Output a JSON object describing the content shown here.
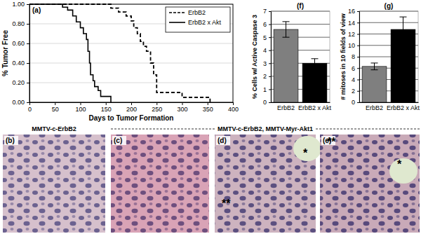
{
  "chart_data": [
    {
      "type": "line",
      "panel_label": "(a)",
      "x_label": "Days to Tumor Formation",
      "y_label": "% Tumor Free",
      "xlim": [
        0,
        400
      ],
      "xticks": [
        0,
        50,
        100,
        150,
        200,
        250,
        300,
        350,
        400
      ],
      "ylim": [
        0,
        1
      ],
      "yticks": [
        {
          "value": 0,
          "label": "0.00"
        },
        {
          "value": 0.2,
          "label": "0.20"
        },
        {
          "value": 0.4,
          "label": "0.40"
        },
        {
          "value": 0.6,
          "label": "0.60"
        },
        {
          "value": 0.8,
          "label": "0.80"
        },
        {
          "value": 1,
          "label": "1.00"
        }
      ],
      "grid": true,
      "legend": "upper right",
      "series": [
        {
          "name": "ErbB2",
          "color": "#000000",
          "line_style": "dashed",
          "x": [
            0,
            160,
            175,
            190,
            200,
            205,
            212,
            218,
            224,
            230,
            238,
            244,
            250,
            300,
            355
          ],
          "values": [
            1,
            0.96,
            0.92,
            0.88,
            0.83,
            0.76,
            0.7,
            0.62,
            0.57,
            0.52,
            0.4,
            0.28,
            0.1,
            0.05,
            0
          ]
        },
        {
          "name": "ErbB2 x Akt",
          "color": "#000000",
          "line_style": "solid",
          "x": [
            0,
            65,
            75,
            85,
            92,
            100,
            106,
            112,
            115,
            118,
            120,
            125,
            128,
            135,
            140,
            160
          ],
          "values": [
            1,
            0.97,
            0.94,
            0.88,
            0.82,
            0.76,
            0.7,
            0.64,
            0.52,
            0.4,
            0.28,
            0.22,
            0.16,
            0.12,
            0.06,
            0
          ]
        }
      ]
    },
    {
      "type": "bar",
      "panel_label": "(f)",
      "y_label": "% Cells w/ Active Caspase 3",
      "categories": [
        "ErbB2",
        "ErbB2 x Akt"
      ],
      "values": [
        5.6,
        3.0
      ],
      "errors": [
        0.6,
        0.35
      ],
      "colors": [
        "#7f7f7f",
        "#000000"
      ],
      "ylim": [
        0,
        7
      ],
      "yticks": [
        0,
        1,
        2,
        3,
        4,
        5,
        6,
        7
      ],
      "grid": true
    },
    {
      "type": "bar",
      "panel_label": "(g)",
      "y_label": "# mitoses in 10 fields of view",
      "categories": [
        "ErbB2",
        "ErbB2 x Akt"
      ],
      "values": [
        6.3,
        12.8
      ],
      "errors": [
        0.6,
        2.2
      ],
      "colors": [
        "#7f7f7f",
        "#000000"
      ],
      "ylim": [
        0,
        16
      ],
      "yticks": [
        0,
        2,
        4,
        6,
        8,
        10,
        12,
        14,
        16
      ],
      "grid": true
    }
  ],
  "images": {
    "group_labels": [
      "MMTV-c-ErbB2",
      "MMTV-c-ErbB2, MMTV-Myr-Akt1"
    ],
    "panels": [
      {
        "label": "(b)",
        "annotations": []
      },
      {
        "label": "(c)",
        "annotations": []
      },
      {
        "label": "(d)",
        "annotations": [
          "*",
          "**"
        ]
      },
      {
        "label": "(e)",
        "annotations": [
          "**",
          "*"
        ]
      }
    ]
  }
}
